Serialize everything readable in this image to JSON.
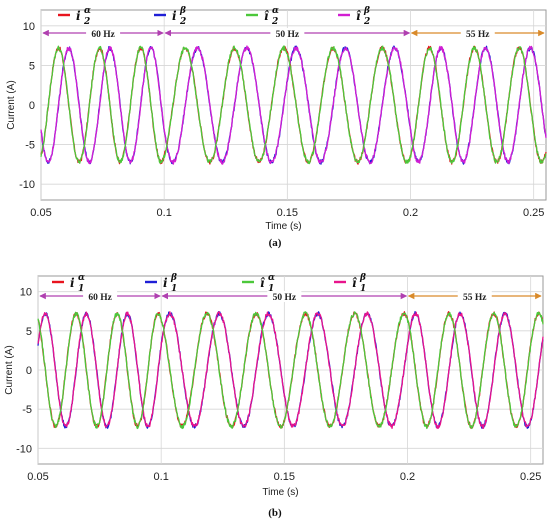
{
  "chart_data": [
    {
      "type": "line",
      "panel": "a",
      "caption": "(a)",
      "xlabel": "Time (s)",
      "ylabel": "Current (A)",
      "xlim": [
        0.05,
        0.255
      ],
      "ylim": [
        -12,
        12
      ],
      "xticks": [
        "0.05",
        "0.1",
        "0.15",
        "0.2",
        "0.25"
      ],
      "yticks": [
        "10",
        "5",
        "0",
        "-5",
        "-10"
      ],
      "grid": true,
      "legend_placement": "top",
      "amplitude": 7.2,
      "phase_deg": -64,
      "segments": [
        {
          "label": "60 Hz",
          "freq_hz": 60,
          "t_start": 0.05,
          "t_end": 0.1
        },
        {
          "label": "50 Hz",
          "freq_hz": 50,
          "t_start": 0.1,
          "t_end": 0.2
        },
        {
          "label": "55 Hz",
          "freq_hz": 55,
          "t_start": 0.2,
          "t_end": 0.255
        }
      ],
      "series": [
        {
          "legend_base": "i",
          "legend_sub": "2",
          "legend_sup": "α",
          "color": "#e8141e",
          "quadrature": 0
        },
        {
          "legend_base": "i",
          "legend_sub": "2",
          "legend_sup": "β",
          "color": "#1f1fd6",
          "quadrature": 1
        },
        {
          "legend_base": "î",
          "legend_sub": "2",
          "legend_sup": "α",
          "color": "#4cc83a",
          "quadrature": 0
        },
        {
          "legend_base": "î",
          "legend_sub": "2",
          "legend_sup": "β",
          "color": "#d21ed2",
          "quadrature": 1
        }
      ]
    },
    {
      "type": "line",
      "panel": "b",
      "caption": "(b)",
      "xlabel": "Time (s)",
      "ylabel": "Current (A)",
      "xlim": [
        0.05,
        0.255
      ],
      "ylim": [
        -12,
        12
      ],
      "xticks": [
        "0.05",
        "0.1",
        "0.15",
        "0.2",
        "0.25"
      ],
      "yticks": [
        "10",
        "5",
        "0",
        "-5",
        "-10"
      ],
      "grid": true,
      "legend_placement": "top",
      "amplitude": 7.2,
      "phase_deg": 116,
      "segments": [
        {
          "label": "60 Hz",
          "freq_hz": 60,
          "t_start": 0.05,
          "t_end": 0.1
        },
        {
          "label": "50 Hz",
          "freq_hz": 50,
          "t_start": 0.1,
          "t_end": 0.2
        },
        {
          "label": "55 Hz",
          "freq_hz": 55,
          "t_start": 0.2,
          "t_end": 0.255
        }
      ],
      "series": [
        {
          "legend_base": "i",
          "legend_sub": "1",
          "legend_sup": "α",
          "color": "#e8141e",
          "quadrature": 0
        },
        {
          "legend_base": "i",
          "legend_sub": "1",
          "legend_sup": "β",
          "color": "#1f1fd6",
          "quadrature": 1
        },
        {
          "legend_base": "î",
          "legend_sub": "1",
          "legend_sup": "α",
          "color": "#4cc83a",
          "quadrature": 0
        },
        {
          "legend_base": "î",
          "legend_sub": "1",
          "legend_sup": "β",
          "color": "#e8148c",
          "quadrature": 1
        }
      ]
    }
  ]
}
